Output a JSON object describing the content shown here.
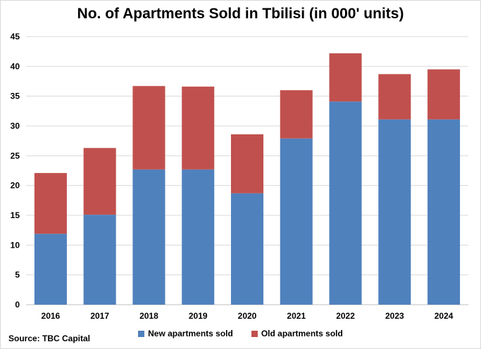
{
  "chart_data": {
    "type": "bar",
    "stacked": true,
    "title": "No. of Apartments Sold in Tbilisi (in 000' units)",
    "categories": [
      "2016",
      "2017",
      "2018",
      "2019",
      "2020",
      "2021",
      "2022",
      "2023",
      "2024"
    ],
    "series": [
      {
        "name": "New apartments sold",
        "color": "#4f81bd",
        "values": [
          11.9,
          15.1,
          22.7,
          22.7,
          18.7,
          27.9,
          34.1,
          31.1,
          31.1
        ]
      },
      {
        "name": "Old apartments sold",
        "color": "#c0504d",
        "values": [
          10.2,
          11.2,
          14.0,
          13.9,
          9.9,
          8.1,
          8.1,
          7.6,
          8.4
        ]
      }
    ],
    "xlabel": "",
    "ylabel": "",
    "ylim": [
      0,
      45
    ],
    "yticks": [
      "0",
      "5",
      "10",
      "15",
      "20",
      "25",
      "30",
      "35",
      "40",
      "45"
    ],
    "grid": true,
    "legend_position": "bottom"
  },
  "source_text": "Source:  TBC Capital"
}
